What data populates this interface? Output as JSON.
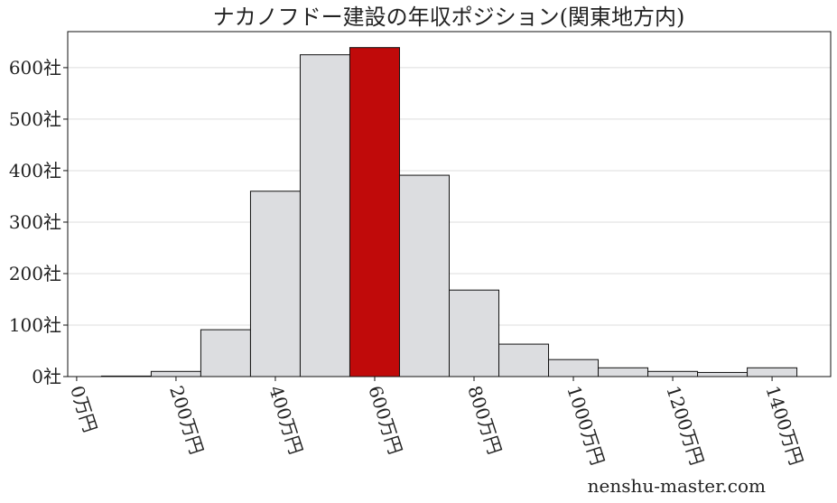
{
  "chart_data": {
    "type": "bar",
    "title": "ナカノフドー建設の年収ポジション(関東地方内)",
    "xlabel": "",
    "ylabel": "",
    "bin_edges": [
      50,
      150,
      250,
      350,
      450,
      550,
      650,
      750,
      850,
      950,
      1050,
      1150,
      1250,
      1350,
      1450
    ],
    "values": [
      1,
      10,
      91,
      360,
      625,
      639,
      391,
      168,
      63,
      33,
      17,
      10,
      8,
      17
    ],
    "highlight_index": 5,
    "xlim": [
      -18,
      1518
    ],
    "ylim": [
      0,
      670
    ],
    "xticks": [
      0,
      200,
      400,
      600,
      800,
      1000,
      1200,
      1400
    ],
    "xtick_labels": [
      "0万円",
      "200万円",
      "400万円",
      "600万円",
      "800万円",
      "1000万円",
      "1200万円",
      "1400万円"
    ],
    "yticks": [
      0,
      100,
      200,
      300,
      400,
      500,
      600
    ],
    "ytick_labels": [
      "0社",
      "100社",
      "200社",
      "300社",
      "400社",
      "500社",
      "600社"
    ],
    "grid": "horizontal",
    "colors": {
      "bar": "#dcdde0",
      "highlight": "#c00a0a",
      "edge": "#111111",
      "grid": "#dddddd"
    }
  },
  "watermark": "nenshu-master.com"
}
